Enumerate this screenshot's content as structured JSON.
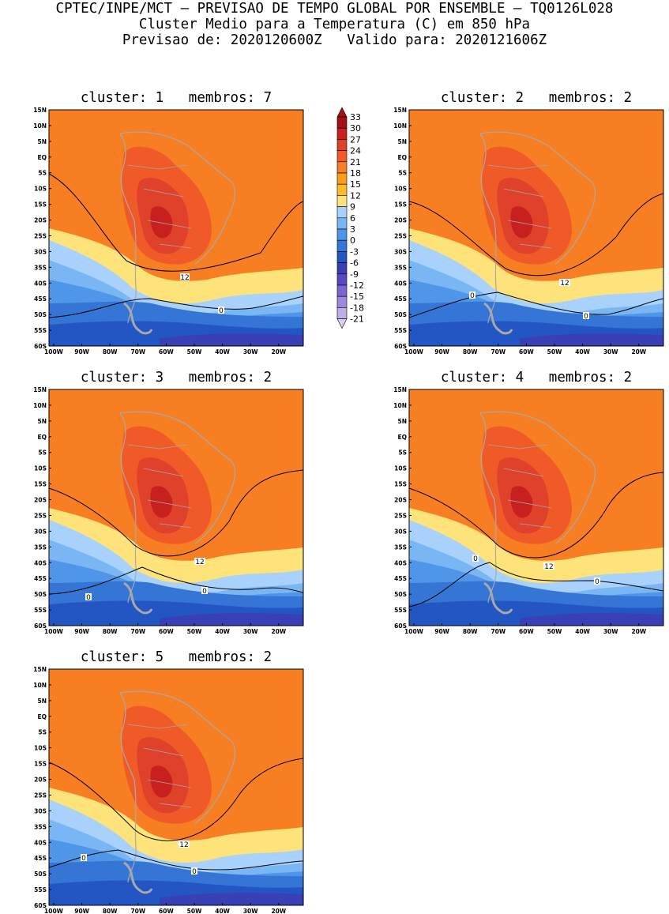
{
  "header": {
    "line1": "CPTEC/INPE/MCT – PREVISAO DE TEMPO GLOBAL POR ENSEMBLE – TQ0126L028",
    "line2": "Cluster Medio para a Temperatura (C) em 850 hPa",
    "line3": "Previsao de: 2020120600Z   Valido para: 2020121606Z"
  },
  "axes": {
    "lat_labels": [
      "15N",
      "10N",
      "5N",
      "EQ",
      "5S",
      "10S",
      "15S",
      "20S",
      "25S",
      "30S",
      "35S",
      "40S",
      "45S",
      "50S",
      "55S",
      "60S"
    ],
    "lon_labels": [
      "100W",
      "90W",
      "80W",
      "70W",
      "60W",
      "50W",
      "40W",
      "30W",
      "20W"
    ]
  },
  "colorbar": {
    "labels": [
      "33",
      "30",
      "27",
      "24",
      "21",
      "18",
      "15",
      "12",
      "9",
      "6",
      "3",
      "0",
      "-3",
      "-6",
      "-9",
      "-12",
      "-15",
      "-18",
      "-21"
    ],
    "colors": [
      "#a50f15",
      "#c8201e",
      "#e0412a",
      "#ef5a28",
      "#f77e22",
      "#fb9d15",
      "#fdbb2c",
      "#fee37a",
      "#a8d2fb",
      "#7ab6f3",
      "#5096e8",
      "#3575d6",
      "#2356c3",
      "#3940b5",
      "#5a47c4",
      "#7d64d3",
      "#9e87dd",
      "#bfaee8",
      "#dccef2"
    ]
  },
  "clusters": [
    {
      "title": "cluster: 1   membros: 7",
      "contour_labels": [
        "12",
        "0"
      ]
    },
    {
      "title": "cluster: 2   membros: 2",
      "contour_labels": [
        "12",
        "0",
        "0"
      ]
    },
    {
      "title": "cluster: 3   membros: 2",
      "contour_labels": [
        "12",
        "0",
        "0"
      ]
    },
    {
      "title": "cluster: 4   membros: 2",
      "contour_labels": [
        "12",
        "0",
        "0"
      ]
    },
    {
      "title": "cluster: 5   membros: 2",
      "contour_labels": [
        "12",
        "0",
        "0"
      ]
    }
  ]
}
